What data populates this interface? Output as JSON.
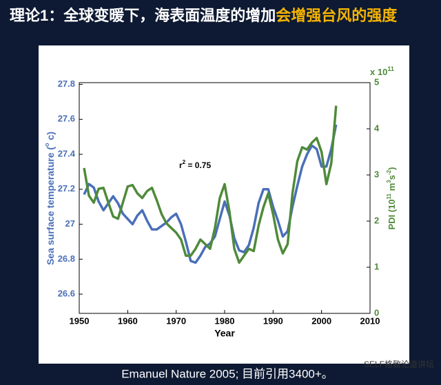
{
  "slide": {
    "title": "理论1：全球变暖下，海表面温度的增加",
    "title_highlight": "会增强台风的强度",
    "footer": "Emanuel Nature 2005; 目前引用3400+。",
    "watermark": "SELF格致论道讲坛"
  },
  "chart_data": {
    "type": "line",
    "x_label": "Year",
    "y_label": {
      "text": "Sea surface temperature (",
      "sup": "o",
      "end": " c)"
    },
    "y2_label": {
      "text": "PDI (10",
      "sup1": "11",
      "mid": " m",
      "sup2": "3",
      "mid2": "s",
      "sup3": "-2",
      "end": ")"
    },
    "y2_multiplier": {
      "base": "x 10",
      "exp": "11"
    },
    "annotation": {
      "base": "r",
      "sup": "2",
      "rest": " = 0.75"
    },
    "x": [
      1951,
      1952,
      1953,
      1954,
      1955,
      1956,
      1957,
      1958,
      1959,
      1960,
      1961,
      1962,
      1963,
      1964,
      1965,
      1966,
      1967,
      1968,
      1969,
      1970,
      1971,
      1972,
      1973,
      1974,
      1975,
      1976,
      1977,
      1978,
      1979,
      1980,
      1981,
      1982,
      1983,
      1984,
      1985,
      1986,
      1987,
      1988,
      1989,
      1990,
      1991,
      1992,
      1993,
      1994,
      1995,
      1996,
      1997,
      1998,
      1999,
      2000,
      2001,
      2002,
      2003
    ],
    "series": [
      {
        "color": "#4a6fb8",
        "values": [
          27.17,
          27.23,
          27.21,
          27.13,
          27.08,
          27.12,
          27.16,
          27.12,
          27.06,
          27.03,
          27.0,
          27.05,
          27.08,
          27.02,
          26.97,
          26.97,
          26.99,
          27.01,
          27.04,
          27.06,
          27.0,
          26.9,
          26.79,
          26.78,
          26.82,
          26.87,
          26.89,
          26.93,
          27.03,
          27.13,
          27.05,
          26.92,
          26.85,
          26.84,
          26.88,
          26.98,
          27.12,
          27.2,
          27.2,
          27.1,
          27.02,
          26.93,
          26.96,
          27.1,
          27.22,
          27.33,
          27.4,
          27.45,
          27.43,
          27.33,
          27.33,
          27.43,
          27.57
        ]
      },
      {
        "color": "#4f8a3a",
        "axis": "y2",
        "values": [
          3.15,
          2.55,
          2.4,
          2.7,
          2.72,
          2.4,
          2.1,
          2.05,
          2.4,
          2.75,
          2.78,
          2.6,
          2.5,
          2.65,
          2.72,
          2.45,
          2.15,
          1.95,
          1.85,
          1.75,
          1.6,
          1.25,
          1.25,
          1.4,
          1.6,
          1.5,
          1.4,
          1.85,
          2.5,
          2.8,
          2.2,
          1.4,
          1.1,
          1.25,
          1.4,
          1.35,
          1.9,
          2.3,
          2.6,
          2.15,
          1.6,
          1.3,
          1.5,
          2.6,
          3.3,
          3.6,
          3.55,
          3.7,
          3.8,
          3.5,
          2.8,
          3.25,
          4.5
        ]
      }
    ],
    "xlim": [
      1950,
      2010
    ],
    "xticks": [
      1950,
      1960,
      1970,
      1980,
      1990,
      2000,
      2010
    ],
    "ylim": [
      26.49,
      27.81
    ],
    "yticks": [
      26.6,
      26.8,
      27,
      27.2,
      27.4,
      27.6,
      27.8
    ],
    "y2lim": [
      0,
      5
    ],
    "y2ticks": [
      0,
      1,
      2,
      3,
      4,
      5
    ]
  }
}
